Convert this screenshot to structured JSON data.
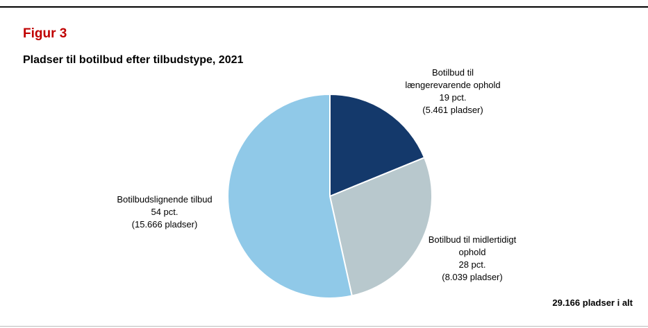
{
  "chart_data": {
    "type": "pie",
    "figure_label": "Figur 3",
    "title": "Pladser til botilbud efter tilbudstype, 2021",
    "categories": [
      "Botilbud til længerevarende ophold",
      "Botilbud til midlertidigt ophold",
      "Botilbudslignende tilbud"
    ],
    "values": [
      19,
      28,
      54
    ],
    "value_labels": [
      "19 pct.",
      "28 pct.",
      "54 pct."
    ],
    "counts": [
      5461,
      8039,
      15666
    ],
    "count_labels": [
      "(5.461 pladser)",
      "(8.039 pladser)",
      "(15.666 pladser)"
    ],
    "colors": [
      "#14396b",
      "#b8c8cd",
      "#90c9e8"
    ],
    "annotation": "29.166 pladser i alt"
  }
}
